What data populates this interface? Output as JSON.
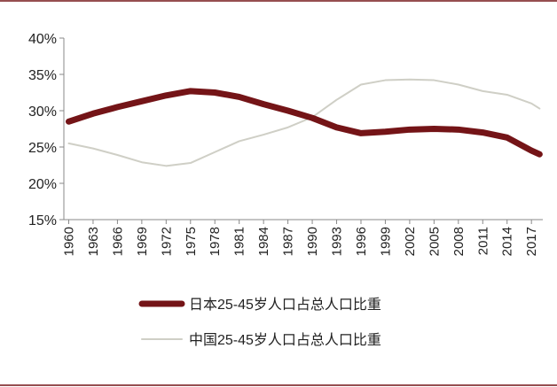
{
  "chart_data": {
    "type": "line",
    "x": [
      1960,
      1963,
      1966,
      1969,
      1972,
      1975,
      1978,
      1981,
      1984,
      1987,
      1990,
      1993,
      1996,
      1999,
      2002,
      2005,
      2008,
      2011,
      2014,
      2017,
      2018
    ],
    "series": [
      {
        "name": "日本25-45岁人口占总人口比重",
        "color": "#741417",
        "values": [
          28.5,
          29.6,
          30.5,
          31.3,
          32.1,
          32.7,
          32.5,
          31.9,
          30.9,
          30.0,
          29.0,
          27.7,
          26.9,
          27.1,
          27.4,
          27.5,
          27.4,
          27.0,
          26.3,
          24.5,
          24.0
        ]
      },
      {
        "name": "中国25-45岁人口占总人口比重",
        "color": "#cfcfc6",
        "values": [
          25.5,
          24.8,
          23.9,
          22.9,
          22.4,
          22.8,
          24.3,
          25.8,
          26.7,
          27.7,
          29.1,
          31.5,
          33.6,
          34.2,
          34.3,
          34.2,
          33.6,
          32.7,
          32.2,
          31.0,
          30.3
        ]
      }
    ],
    "xlim": [
      1959.4,
      2018.4
    ],
    "xticks": [
      1960,
      1963,
      1966,
      1969,
      1972,
      1975,
      1978,
      1981,
      1984,
      1987,
      1990,
      1993,
      1996,
      1999,
      2002,
      2005,
      2008,
      2011,
      2014,
      2017
    ],
    "ylim": [
      15,
      40
    ],
    "yticks": [
      {
        "value": 15,
        "label": "15%"
      },
      {
        "value": 20,
        "label": "20%"
      },
      {
        "value": 25,
        "label": "25%"
      },
      {
        "value": 30,
        "label": "30%"
      },
      {
        "value": 35,
        "label": "35%"
      },
      {
        "value": 40,
        "label": "40%"
      }
    ],
    "grid": false
  }
}
